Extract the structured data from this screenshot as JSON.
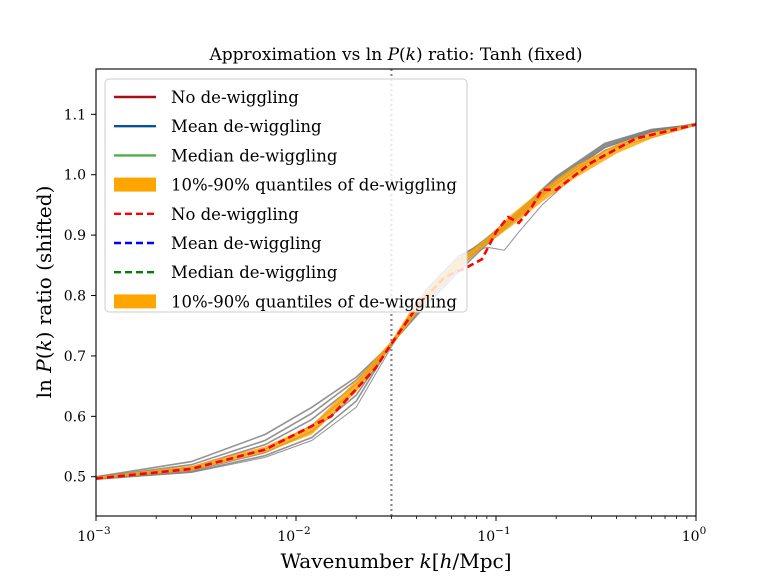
{
  "chart_data": {
    "type": "line",
    "title": "Approximation vs ln P(k) ratio: Tanh (fixed)",
    "xlabel": "Wavenumber k[h/Mpc]",
    "ylabel": "ln P(k) ratio (shifted)",
    "x_scale": "log",
    "xlim": [
      0.001,
      1
    ],
    "ylim": [
      0.435,
      1.175
    ],
    "x_ticks": [
      {
        "value": 0.001,
        "label": "10^-3"
      },
      {
        "value": 0.01,
        "label": "10^-2"
      },
      {
        "value": 0.1,
        "label": "10^-1"
      },
      {
        "value": 1,
        "label": "10^0"
      }
    ],
    "y_ticks": [
      0.5,
      0.6,
      0.7,
      0.8,
      0.9,
      1.0,
      1.1
    ],
    "y_tick_labels": [
      "0.5",
      "0.6",
      "0.7",
      "0.8",
      "0.9",
      "1.0",
      "1.1"
    ],
    "vertical_line_x": 0.03,
    "legend": {
      "placement": "upper-left",
      "entries": [
        {
          "label": "No de-wiggling",
          "color": "#a50f15",
          "style": "solid"
        },
        {
          "label": "Mean de-wiggling",
          "color": "#08519c",
          "style": "solid"
        },
        {
          "label": "Median de-wiggling",
          "color": "#4daf4a",
          "style": "solid"
        },
        {
          "label": "10%-90% quantiles of de-wiggling",
          "color": "#ffa500",
          "style": "band"
        },
        {
          "label": "No de-wiggling",
          "color": "#ff0000",
          "style": "dashed"
        },
        {
          "label": "Mean de-wiggling",
          "color": "#0000ff",
          "style": "dashed"
        },
        {
          "label": "Median de-wiggling",
          "color": "#008000",
          "style": "dashed"
        },
        {
          "label": "10%-90% quantiles of de-wiggling",
          "color": "#ffa500",
          "style": "band"
        }
      ]
    },
    "series": [
      {
        "style": "dashed",
        "color": "#ff0000",
        "x": [
          0.001,
          0.003,
          0.007,
          0.015,
          0.025,
          0.03,
          0.04,
          0.055,
          0.07,
          0.085,
          0.1,
          0.115,
          0.13,
          0.15,
          0.17,
          0.2,
          0.3,
          0.5,
          1.0
        ],
        "y": [
          0.497,
          0.513,
          0.545,
          0.6,
          0.68,
          0.72,
          0.78,
          0.83,
          0.845,
          0.86,
          0.905,
          0.93,
          0.92,
          0.945,
          0.975,
          0.975,
          1.02,
          1.06,
          1.083
        ]
      }
    ],
    "band": {
      "color": "#ffa500",
      "x": [
        0.001,
        0.003,
        0.007,
        0.012,
        0.02,
        0.03,
        0.04,
        0.06,
        0.09,
        0.12,
        0.17,
        0.25,
        0.4,
        0.6,
        1.0
      ],
      "y_low": [
        0.496,
        0.51,
        0.54,
        0.57,
        0.64,
        0.715,
        0.77,
        0.835,
        0.885,
        0.915,
        0.955,
        0.995,
        1.035,
        1.06,
        1.081
      ],
      "y_high": [
        0.5,
        0.518,
        0.55,
        0.585,
        0.66,
        0.725,
        0.79,
        0.85,
        0.895,
        0.935,
        0.975,
        1.015,
        1.05,
        1.07,
        1.085
      ]
    },
    "gray_curves": [
      {
        "x": [
          0.001,
          0.003,
          0.007,
          0.012,
          0.02,
          0.03,
          0.045,
          0.065,
          0.09,
          0.13,
          0.2,
          0.35,
          0.6,
          1.0
        ],
        "y": [
          0.5,
          0.525,
          0.57,
          0.615,
          0.665,
          0.72,
          0.785,
          0.84,
          0.885,
          0.93,
          0.985,
          1.04,
          1.07,
          1.085
        ]
      },
      {
        "x": [
          0.001,
          0.003,
          0.007,
          0.012,
          0.02,
          0.03,
          0.045,
          0.065,
          0.09,
          0.13,
          0.2,
          0.35,
          0.6,
          1.0
        ],
        "y": [
          0.499,
          0.52,
          0.56,
          0.605,
          0.66,
          0.72,
          0.79,
          0.845,
          0.888,
          0.932,
          0.99,
          1.045,
          1.072,
          1.084
        ]
      },
      {
        "x": [
          0.001,
          0.003,
          0.007,
          0.012,
          0.02,
          0.03,
          0.045,
          0.065,
          0.09,
          0.13,
          0.2,
          0.35,
          0.6,
          1.0
        ],
        "y": [
          0.498,
          0.516,
          0.553,
          0.595,
          0.653,
          0.72,
          0.795,
          0.85,
          0.89,
          0.935,
          0.993,
          1.048,
          1.073,
          1.084
        ]
      },
      {
        "x": [
          0.001,
          0.003,
          0.007,
          0.012,
          0.02,
          0.03,
          0.045,
          0.065,
          0.09,
          0.13,
          0.2,
          0.35,
          0.6,
          1.0
        ],
        "y": [
          0.497,
          0.513,
          0.545,
          0.585,
          0.645,
          0.72,
          0.8,
          0.855,
          0.893,
          0.938,
          0.995,
          1.05,
          1.074,
          1.083
        ]
      },
      {
        "x": [
          0.001,
          0.003,
          0.007,
          0.012,
          0.02,
          0.03,
          0.045,
          0.065,
          0.09,
          0.13,
          0.2,
          0.35,
          0.6,
          1.0
        ],
        "y": [
          0.497,
          0.51,
          0.54,
          0.575,
          0.635,
          0.72,
          0.805,
          0.86,
          0.895,
          0.94,
          0.997,
          1.052,
          1.075,
          1.083
        ]
      },
      {
        "x": [
          0.001,
          0.003,
          0.007,
          0.012,
          0.02,
          0.03,
          0.045,
          0.065,
          0.09,
          0.13,
          0.2,
          0.35,
          0.6,
          1.0
        ],
        "y": [
          0.496,
          0.508,
          0.535,
          0.565,
          0.625,
          0.72,
          0.81,
          0.865,
          0.89,
          0.935,
          0.99,
          1.045,
          1.072,
          1.082
        ]
      },
      {
        "x": [
          0.001,
          0.003,
          0.007,
          0.012,
          0.02,
          0.03,
          0.045,
          0.065,
          0.09,
          0.11,
          0.13,
          0.17,
          0.25,
          0.4,
          1.0
        ],
        "y": [
          0.496,
          0.507,
          0.532,
          0.56,
          0.615,
          0.715,
          0.805,
          0.86,
          0.88,
          0.875,
          0.905,
          0.95,
          1.0,
          1.045,
          1.082
        ]
      }
    ]
  }
}
